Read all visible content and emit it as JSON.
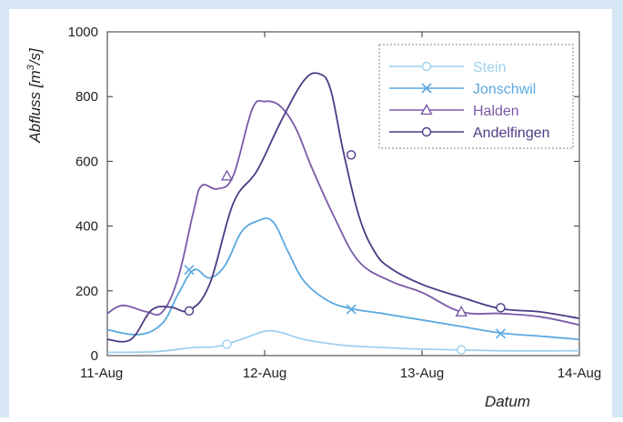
{
  "chart_data": {
    "type": "line",
    "title": "",
    "xlabel": "Datum",
    "ylabel_main": "Abfluss [m",
    "ylabel_sup": "3",
    "ylabel_tail": "/s]",
    "x_ticks": [
      "11-Aug",
      "12-Aug",
      "13-Aug",
      "14-Aug"
    ],
    "y_ticks": [
      "0",
      "200",
      "400",
      "600",
      "800",
      "1000"
    ],
    "xlim": [
      0,
      3
    ],
    "ylim": [
      0,
      1000
    ],
    "x_unit": "days since 11-Aug",
    "legend_position": "top-right",
    "series": [
      {
        "name": "Stein",
        "color": "#9fd0ef",
        "marker": "circle",
        "x": [
          0.0,
          0.3,
          0.55,
          0.7,
          0.85,
          1.0,
          1.1,
          1.25,
          1.5,
          1.75,
          2.0,
          2.5,
          3.0
        ],
        "values": [
          10,
          12,
          25,
          28,
          50,
          75,
          72,
          50,
          32,
          25,
          20,
          15,
          15
        ],
        "marker_x": [
          0.76,
          2.25
        ],
        "marker_values": [
          35,
          18
        ]
      },
      {
        "name": "Jonschwil",
        "color": "#5aa8e0",
        "marker": "x",
        "x": [
          0.0,
          0.2,
          0.35,
          0.45,
          0.55,
          0.65,
          0.75,
          0.85,
          0.95,
          1.05,
          1.15,
          1.25,
          1.4,
          1.55,
          1.75,
          2.0,
          2.25,
          2.5,
          2.75,
          3.0
        ],
        "values": [
          80,
          65,
          100,
          190,
          265,
          240,
          280,
          380,
          415,
          415,
          320,
          230,
          170,
          145,
          130,
          110,
          90,
          70,
          60,
          50
        ],
        "marker_x": [
          0.52,
          1.55,
          2.5
        ],
        "marker_values": [
          265,
          143,
          68
        ]
      },
      {
        "name": "Halden",
        "color": "#7a5aa6",
        "marker": "triangle",
        "x": [
          0.0,
          0.1,
          0.25,
          0.35,
          0.45,
          0.55,
          0.6,
          0.7,
          0.8,
          0.92,
          1.0,
          1.1,
          1.2,
          1.3,
          1.45,
          1.6,
          1.8,
          2.0,
          2.25,
          2.5,
          2.75,
          3.0
        ],
        "values": [
          130,
          155,
          135,
          135,
          240,
          450,
          525,
          515,
          555,
          760,
          785,
          770,
          700,
          580,
          420,
          290,
          230,
          195,
          135,
          130,
          120,
          95
        ],
        "marker_x": [
          0.76,
          2.25
        ],
        "marker_values": [
          555,
          135
        ]
      },
      {
        "name": "Andelfingen",
        "color": "#4e3a85",
        "marker": "circle",
        "x": [
          0.0,
          0.15,
          0.28,
          0.4,
          0.52,
          0.65,
          0.8,
          0.95,
          1.1,
          1.25,
          1.35,
          1.42,
          1.5,
          1.6,
          1.7,
          1.8,
          2.0,
          2.25,
          2.5,
          2.75,
          3.0
        ],
        "values": [
          50,
          50,
          140,
          150,
          140,
          220,
          470,
          570,
          720,
          850,
          870,
          820,
          630,
          430,
          320,
          270,
          220,
          180,
          145,
          135,
          115
        ],
        "marker_x": [
          0.52,
          1.55,
          2.5
        ],
        "marker_values": [
          138,
          620,
          148
        ]
      }
    ]
  }
}
